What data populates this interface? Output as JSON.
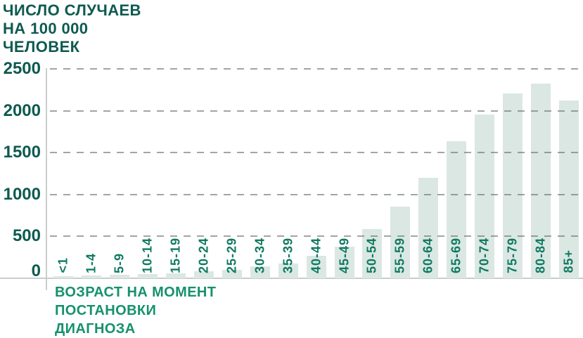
{
  "chart_data": {
    "type": "bar",
    "title": "ЧИСЛО СЛУЧАЕВ НА 100 000 ЧЕЛОВЕК",
    "title_lines": [
      "ЧИСЛО СЛУЧАЕВ",
      "НА 100 000",
      "ЧЕЛОВЕК"
    ],
    "xlabel": "ВОЗРАСТ НА МОМЕНТ ПОСТАНОВКИ ДИАГНОЗА",
    "xlabel_lines": [
      "ВОЗРАСТ НА МОМЕНТ",
      "ПОСТАНОВКИ",
      "ДИАГНОЗА"
    ],
    "ylabel": "",
    "categories": [
      "<1",
      "1-4",
      "5-9",
      "10-14",
      "15-19",
      "20-24",
      "25-29",
      "30-34",
      "35-39",
      "40-44",
      "45-49",
      "50-54",
      "55-59",
      "60-64",
      "65-69",
      "70-74",
      "75-79",
      "80-84",
      "85+"
    ],
    "values": [
      25,
      35,
      45,
      50,
      60,
      80,
      100,
      140,
      180,
      270,
      375,
      590,
      855,
      1200,
      1640,
      1955,
      2210,
      2320,
      2120
    ],
    "yticks": [
      0,
      500,
      1000,
      1500,
      2000,
      2500
    ],
    "ylim": [
      0,
      2500
    ],
    "grid": "dashed horizontal gridlines, drawn over bars",
    "legend": "none",
    "colors": {
      "bar_fill": "#dbe7e3",
      "title_text": "#0d5a50",
      "ytick_text": "#0d5a50",
      "category_text": "#0f7a61",
      "xlabel_text": "#16916c",
      "gridline": "#a6a6a6",
      "axis_line": "#c9cdcb",
      "background": "#ffffff"
    }
  }
}
